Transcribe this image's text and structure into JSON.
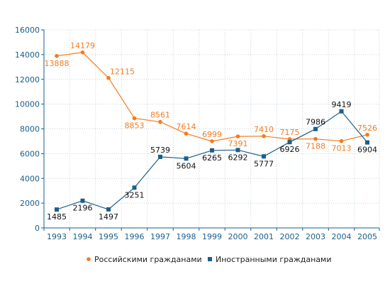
{
  "chart_data": {
    "type": "line",
    "title": "",
    "xlabel": "",
    "ylabel": "",
    "x": [
      1993,
      1994,
      1995,
      1996,
      1997,
      1998,
      1999,
      2000,
      2001,
      2002,
      2003,
      2004,
      2005
    ],
    "ylim": [
      0,
      16000
    ],
    "yticks": [
      0,
      2000,
      4000,
      6000,
      8000,
      10000,
      12000,
      14000,
      16000
    ],
    "grid": true,
    "legend_position": "bottom",
    "series": [
      {
        "name": "Российскими гражданами",
        "color": "#f47b20",
        "marker": "circle",
        "values": [
          13888,
          14179,
          12115,
          8853,
          8561,
          7614,
          6999,
          7391,
          7410,
          7175,
          7188,
          7013,
          7526
        ],
        "label_positions": [
          "below",
          "above",
          "above-right",
          "below",
          "above",
          "above",
          "above",
          "below",
          "above",
          "above",
          "below",
          "below",
          "above"
        ]
      },
      {
        "name": "Иностранными гражданами",
        "color": "#1a5f8a",
        "marker": "square",
        "values": [
          1485,
          2196,
          1497,
          3251,
          5739,
          5604,
          6265,
          6292,
          5777,
          6926,
          7986,
          9419,
          6904
        ],
        "label_positions": [
          "below",
          "below",
          "below",
          "below",
          "above",
          "below",
          "below",
          "below",
          "below",
          "below",
          "above",
          "above",
          "below"
        ]
      }
    ]
  }
}
